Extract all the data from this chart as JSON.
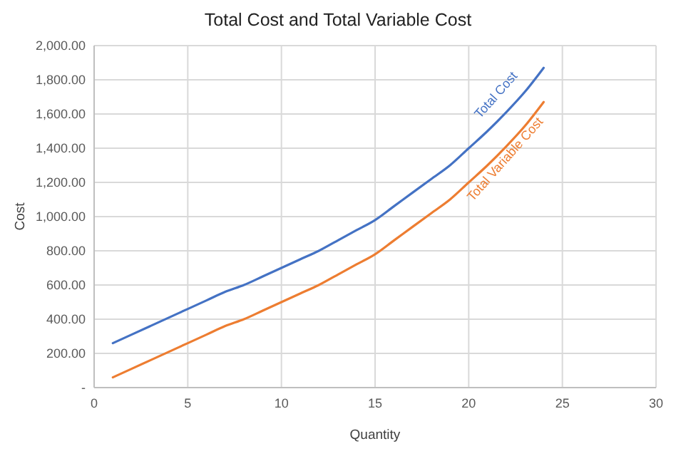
{
  "chart_data": {
    "type": "line",
    "title": "Total Cost and Total Variable Cost",
    "xlabel": "Quantity",
    "ylabel": "Cost",
    "x": [
      1,
      2,
      3,
      4,
      5,
      6,
      7,
      8,
      9,
      10,
      11,
      12,
      13,
      14,
      15,
      16,
      17,
      18,
      19,
      20,
      21,
      22,
      23,
      24
    ],
    "series": [
      {
        "name": "Total Cost",
        "color": "#4472c4",
        "values": [
          260,
          310,
          360,
          410,
          460,
          510,
          560,
          600,
          650,
          700,
          750,
          800,
          860,
          920,
          980,
          1060,
          1140,
          1220,
          1300,
          1400,
          1500,
          1610,
          1730,
          1870
        ]
      },
      {
        "name": "Total Variable Cost",
        "color": "#ed7d31",
        "values": [
          60,
          110,
          160,
          210,
          260,
          310,
          360,
          400,
          450,
          500,
          550,
          600,
          660,
          720,
          780,
          860,
          940,
          1020,
          1100,
          1200,
          1300,
          1410,
          1530,
          1670
        ]
      }
    ],
    "xlim": [
      0,
      30
    ],
    "xticks": [
      0,
      5,
      10,
      15,
      20,
      25,
      30
    ],
    "ylim": [
      0,
      2000
    ],
    "yticks": [
      {
        "value": 0,
        "label": "-"
      },
      {
        "value": 200,
        "label": "200.00"
      },
      {
        "value": 400,
        "label": "400.00"
      },
      {
        "value": 600,
        "label": "600.00"
      },
      {
        "value": 800,
        "label": "800.00"
      },
      {
        "value": 1000,
        "label": "1,000.00"
      },
      {
        "value": 1200,
        "label": "1,200.00"
      },
      {
        "value": 1400,
        "label": "1,400.00"
      },
      {
        "value": 1600,
        "label": "1,600.00"
      },
      {
        "value": 1800,
        "label": "1,800.00"
      },
      {
        "value": 2000,
        "label": "2,000.00"
      }
    ],
    "grid": true,
    "marker": "none",
    "line_style": "solid"
  }
}
